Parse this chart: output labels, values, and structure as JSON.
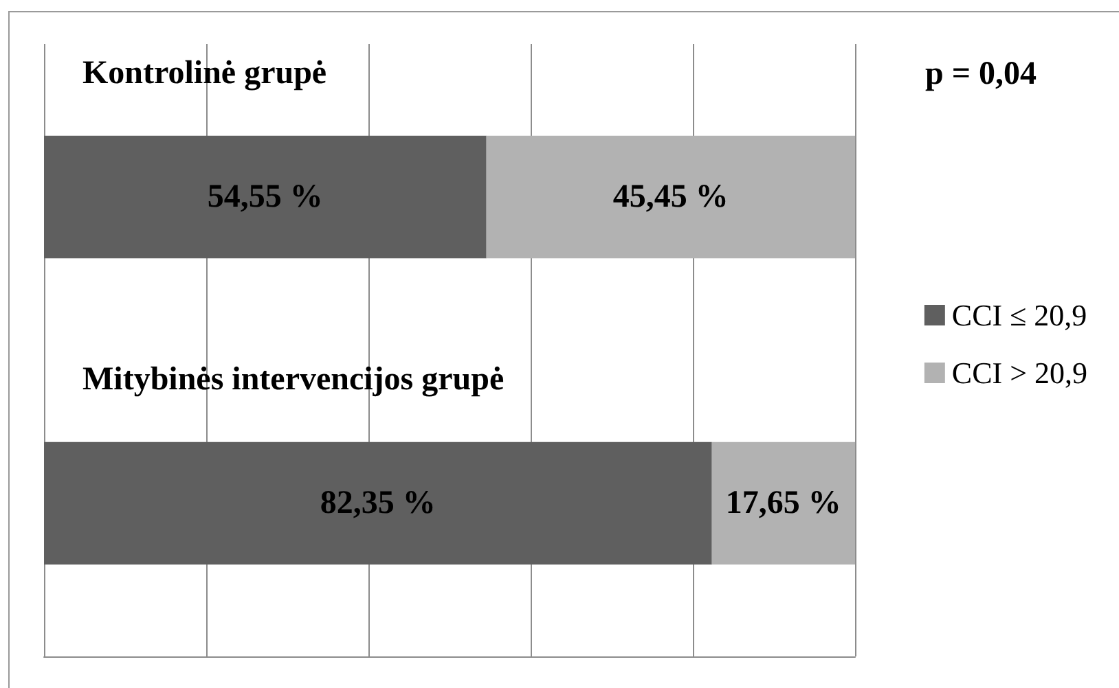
{
  "chart_data": {
    "type": "bar",
    "orientation": "horizontal",
    "stacked": true,
    "categories": [
      "Kontrolinė grupė",
      "Mitybinės intervencijos grupė"
    ],
    "series": [
      {
        "name": "CCI ≤ 20,9",
        "color": "#5f5f5f",
        "values": [
          54.55,
          82.35
        ],
        "value_labels": [
          "54,55 %",
          "82,35 %"
        ]
      },
      {
        "name": "CCI > 20,9",
        "color": "#b2b2b2",
        "values": [
          45.45,
          17.65
        ],
        "value_labels": [
          "45,45 %",
          "17,65 %"
        ]
      }
    ],
    "xlim": [
      0,
      100
    ],
    "xticks": [
      {
        "value": 0,
        "label": null
      },
      {
        "value": 20,
        "label": null
      },
      {
        "value": 40,
        "label": null
      },
      {
        "value": 60,
        "label": null
      },
      {
        "value": 80,
        "label": null
      },
      {
        "value": 100,
        "label": null
      }
    ],
    "tick_labels": "y",
    "grid": "x",
    "legend": "right",
    "annotations": [
      "p = 0,04"
    ]
  }
}
